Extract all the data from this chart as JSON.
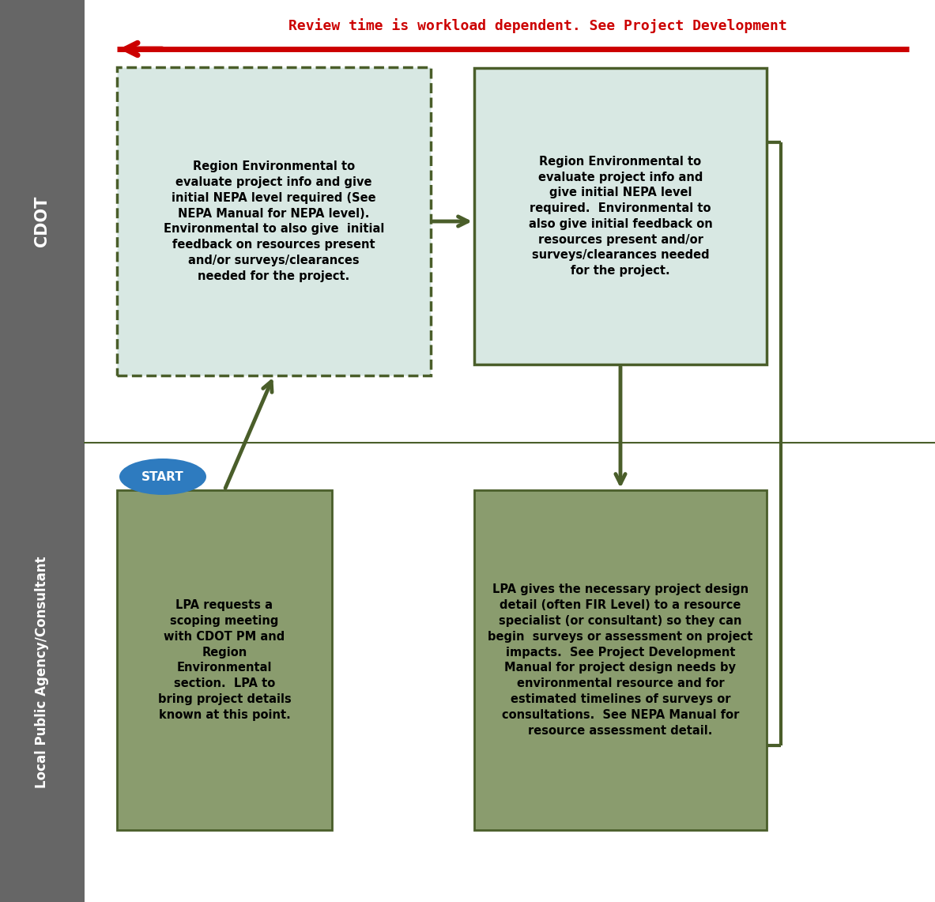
{
  "title_text": "Review time is workload dependent. See Project Development",
  "title_color": "#cc0000",
  "sidebar_color": "#666666",
  "sidebar_label_top": "CDOT",
  "sidebar_label_bottom": "Local Public Agency/Consultant",
  "arrow_color": "#4a5e2a",
  "red_arrow_color": "#cc0000",
  "box1_text": "Region Environmental to\nevaluate project info and give\ninitial NEPA level required (See\nNEPA Manual for NEPA level).\nEnvironmental to also give  initial\nfeedback on resources present\nand/or surveys/clearances\nneeded for the project.",
  "box2_text": "Region Environmental to\nevaluate project info and\ngive initial NEPA level\nrequired.  Environmental to\nalso give initial feedback on\nresources present and/or\nsurveys/clearances needed\nfor the project.",
  "box3_text": "LPA requests a\nscoping meeting\nwith CDOT PM and\nRegion\nEnvironmental\nsection.  LPA to\nbring project details\nknown at this point.",
  "box4_text": "LPA gives the necessary project design\ndetail (often FIR Level) to a resource\nspecialist (or consultant) so they can\nbegin  surveys or assessment on project\nimpacts.  See Project Development\nManual for project design needs by\nenvironmental resource and for\nestimated timelines of surveys or\nconsultations.  See NEPA Manual for\nresource assessment detail.",
  "light_box_facecolor": "#d8e8e3",
  "light_box_edgecolor": "#4a5e2a",
  "dark_box_facecolor": "#8a9c6e",
  "dark_box_edgecolor": "#4a5e2a",
  "start_text": "START",
  "start_color": "#2e7bbf"
}
